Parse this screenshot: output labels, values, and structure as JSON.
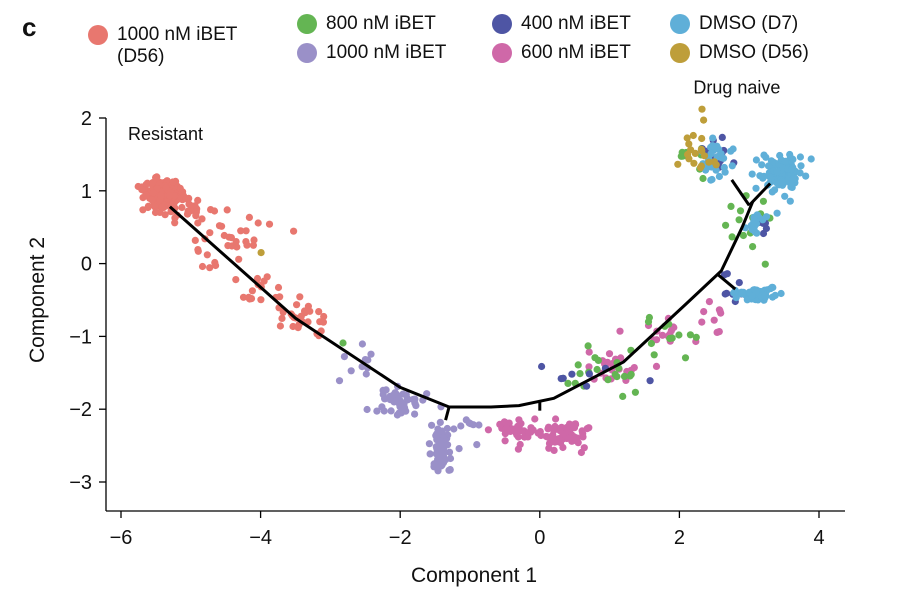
{
  "figure": {
    "panel_label": "c"
  },
  "legend": [
    {
      "label": "1000 nM iBET",
      "label2": "(D56)",
      "color": "#E8776F"
    },
    {
      "label": "800 nM iBET",
      "color": "#64B553"
    },
    {
      "label": "1000 nM iBET",
      "color": "#9A90C8"
    },
    {
      "label": "400 nM iBET",
      "color": "#4E55A4"
    },
    {
      "label": "600 nM iBET",
      "color": "#CF68A8"
    },
    {
      "label": "DMSO (D7)",
      "color": "#5FAFD8"
    },
    {
      "label": "DMSO (D56)",
      "color": "#BE9E3A"
    }
  ],
  "chart_data": {
    "type": "scatter",
    "xlabel": "Component 1",
    "ylabel": "Component 2",
    "xlim": [
      -6.3,
      4.4
    ],
    "ylim": [
      -3.3,
      2.2
    ],
    "xticks": [
      -6,
      -4,
      -2,
      0,
      2,
      4
    ],
    "xtick_labels": [
      "−6",
      "−4",
      "−2",
      "0",
      "2",
      "4"
    ],
    "yticks": [
      2,
      1,
      0,
      -1,
      -2,
      -3
    ],
    "ytick_labels": [
      "2",
      "1",
      "0",
      "−1",
      "−2",
      "−3"
    ],
    "grid": false,
    "legend_position": "top",
    "annotations": [
      {
        "text": "Resistant",
        "x": -5.9,
        "y": 1.7
      },
      {
        "text": "Drug naive",
        "x": 2.2,
        "y": 2.2
      }
    ],
    "trajectory": [
      [
        -5.3,
        0.78
      ],
      [
        -3.5,
        -0.75
      ],
      [
        -2.0,
        -1.7
      ],
      [
        -1.3,
        -1.97
      ],
      [
        -0.7,
        -1.97
      ],
      [
        -0.3,
        -1.95
      ],
      [
        0.2,
        -1.85
      ],
      [
        1.2,
        -1.35
      ],
      [
        2.1,
        -0.55
      ],
      [
        2.6,
        -0.1
      ],
      [
        2.9,
        0.5
      ],
      [
        3.05,
        0.85
      ]
    ],
    "trajectory_branches": [
      [
        [
          -1.3,
          -1.97
        ],
        [
          -1.35,
          -2.15
        ]
      ],
      [
        [
          0.0,
          -1.88
        ],
        [
          0.0,
          -2.02
        ]
      ],
      [
        [
          3.0,
          0.8
        ],
        [
          2.75,
          1.15
        ]
      ],
      [
        [
          3.0,
          0.8
        ],
        [
          3.3,
          1.1
        ]
      ],
      [
        [
          2.55,
          -0.15
        ],
        [
          2.8,
          -0.35
        ]
      ]
    ],
    "series": [
      {
        "name": "1000 nM iBET (D56)",
        "color": "#E8776F",
        "clusters": [
          {
            "cx": -5.4,
            "cy": 0.95,
            "sx": 0.15,
            "sy": 0.12,
            "n": 170
          },
          {
            "cx": -5.0,
            "cy": 0.7,
            "sx": 0.2,
            "sy": 0.12,
            "n": 18
          },
          {
            "cx": -4.4,
            "cy": 0.25,
            "sx": 0.25,
            "sy": 0.18,
            "n": 30
          },
          {
            "cx": -3.9,
            "cy": -0.35,
            "sx": 0.2,
            "sy": 0.12,
            "n": 16
          },
          {
            "cx": -3.45,
            "cy": -0.7,
            "sx": 0.18,
            "sy": 0.12,
            "n": 22
          },
          {
            "cx": -3.1,
            "cy": -0.95,
            "sx": 0.12,
            "sy": 0.08,
            "n": 4
          }
        ]
      },
      {
        "name": "1000 nM iBET",
        "color": "#9A90C8",
        "clusters": [
          {
            "cx": -2.6,
            "cy": -1.45,
            "sx": 0.15,
            "sy": 0.15,
            "n": 10
          },
          {
            "cx": -2.0,
            "cy": -1.9,
            "sx": 0.18,
            "sy": 0.12,
            "n": 40
          },
          {
            "cx": -1.4,
            "cy": -2.55,
            "sx": 0.08,
            "sy": 0.2,
            "n": 70
          },
          {
            "cx": -0.9,
            "cy": -2.3,
            "sx": 0.25,
            "sy": 0.12,
            "n": 8
          }
        ]
      },
      {
        "name": "600 nM iBET",
        "color": "#CF68A8",
        "clusters": [
          {
            "cx": -0.3,
            "cy": -2.3,
            "sx": 0.18,
            "sy": 0.1,
            "n": 40
          },
          {
            "cx": 0.35,
            "cy": -2.35,
            "sx": 0.18,
            "sy": 0.12,
            "n": 55
          },
          {
            "cx": 1.1,
            "cy": -1.45,
            "sx": 0.3,
            "sy": 0.1,
            "n": 25
          },
          {
            "cx": 1.9,
            "cy": -0.95,
            "sx": 0.3,
            "sy": 0.1,
            "n": 15
          },
          {
            "cx": 2.45,
            "cy": -0.6,
            "sx": 0.12,
            "sy": 0.15,
            "n": 8
          }
        ]
      },
      {
        "name": "800 nM iBET",
        "color": "#64B553",
        "clusters": [
          {
            "cx": 0.8,
            "cy": -1.5,
            "sx": 0.35,
            "sy": 0.15,
            "n": 22
          },
          {
            "cx": 1.7,
            "cy": -1.0,
            "sx": 0.3,
            "sy": 0.15,
            "n": 12
          },
          {
            "cx": 2.9,
            "cy": 0.5,
            "sx": 0.25,
            "sy": 0.25,
            "n": 14
          },
          {
            "cx": 2.2,
            "cy": 1.4,
            "sx": 0.12,
            "sy": 0.15,
            "n": 10
          },
          {
            "cx": -2.8,
            "cy": -1.0,
            "sx": 0.05,
            "sy": 0.05,
            "n": 1
          }
        ]
      },
      {
        "name": "400 nM iBET",
        "color": "#4E55A4",
        "clusters": [
          {
            "cx": 0.8,
            "cy": -1.55,
            "sx": 0.35,
            "sy": 0.12,
            "n": 8
          },
          {
            "cx": 2.5,
            "cy": 1.5,
            "sx": 0.15,
            "sy": 0.12,
            "n": 18
          },
          {
            "cx": 2.75,
            "cy": -0.3,
            "sx": 0.1,
            "sy": 0.12,
            "n": 8
          },
          {
            "cx": 3.2,
            "cy": 0.55,
            "sx": 0.08,
            "sy": 0.1,
            "n": 5
          }
        ]
      },
      {
        "name": "DMSO (D7)",
        "color": "#5FAFD8",
        "clusters": [
          {
            "cx": 3.45,
            "cy": 1.25,
            "sx": 0.15,
            "sy": 0.12,
            "n": 110
          },
          {
            "cx": 3.1,
            "cy": -0.42,
            "sx": 0.15,
            "sy": 0.04,
            "n": 70
          },
          {
            "cx": 3.1,
            "cy": 0.55,
            "sx": 0.08,
            "sy": 0.12,
            "n": 15
          },
          {
            "cx": 2.5,
            "cy": 1.45,
            "sx": 0.15,
            "sy": 0.15,
            "n": 30
          }
        ]
      },
      {
        "name": "DMSO (D56)",
        "color": "#BE9E3A",
        "clusters": [
          {
            "cx": 2.25,
            "cy": 1.55,
            "sx": 0.12,
            "sy": 0.2,
            "n": 20
          },
          {
            "cx": -4.0,
            "cy": 0.05,
            "sx": 0.05,
            "sy": 0.05,
            "n": 1
          }
        ]
      }
    ]
  }
}
